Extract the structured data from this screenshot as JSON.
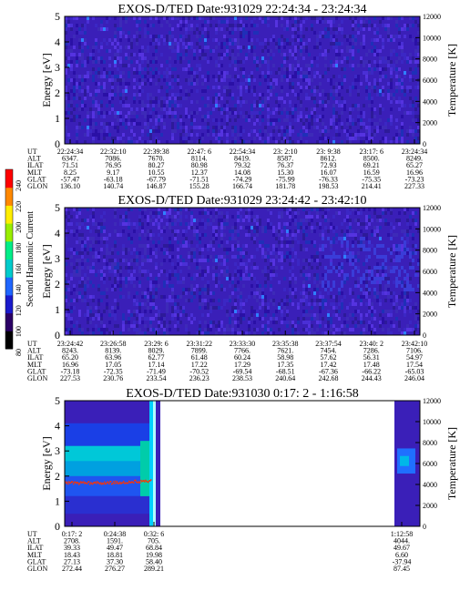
{
  "colorbar": {
    "label": "Second Harmonic Current",
    "ticks": [
      "240",
      "220",
      "200",
      "180",
      "160",
      "140",
      "120",
      "100",
      "80"
    ],
    "colors": [
      "#000000",
      "#2b0066",
      "#1a1acc",
      "#1f66ff",
      "#00cccc",
      "#00ee88",
      "#99ee00",
      "#ffee00",
      "#ff8800",
      "#ff0000"
    ]
  },
  "chart_data": [
    {
      "type": "heatmap",
      "title": "EXOS-D/TED   Date:931029   22:24:34 - 23:24:34",
      "ylabel": "Energy [eV]",
      "y2label": "Temperature [K]",
      "ylim": [
        0,
        5
      ],
      "y2lim": [
        0,
        12000
      ],
      "yticks": [
        "0",
        "1",
        "2",
        "3",
        "4",
        "5"
      ],
      "y2ticks": [
        "0",
        "2000",
        "4000",
        "6000",
        "8000",
        "10000",
        "12000"
      ],
      "ephemeris": [
        {
          "name": "UT",
          "values": [
            "22:24:34",
            "22:32:10",
            "22:39:38",
            "22:47: 6",
            "22:54:34",
            "23: 2:10",
            "23: 9:38",
            "23:17: 6",
            "23:24:34"
          ]
        },
        {
          "name": "ALT",
          "values": [
            "6347.",
            "7086.",
            "7670.",
            "8114.",
            "8419.",
            "8587.",
            "8612.",
            "8500.",
            "8249."
          ]
        },
        {
          "name": "ILAT",
          "values": [
            "71.51",
            "76.95",
            "80.27",
            "80.98",
            "79.32",
            "76.37",
            "72.93",
            "69.21",
            "65.27"
          ]
        },
        {
          "name": "MLT",
          "values": [
            "8.25",
            "9.17",
            "10.55",
            "12.37",
            "14.08",
            "15.30",
            "16.07",
            "16.59",
            "16.96"
          ]
        },
        {
          "name": "GLAT",
          "values": [
            "-57.47",
            "-63.18",
            "-67.79",
            "-71.51",
            "-74.29",
            "-75.99",
            "-76.33",
            "-75.35",
            "-73.23"
          ]
        },
        {
          "name": "GLON",
          "values": [
            "136.10",
            "140.74",
            "146.87",
            "155.28",
            "166.74",
            "181.78",
            "198.53",
            "214.41",
            "227.33"
          ]
        }
      ]
    },
    {
      "type": "heatmap",
      "title": "EXOS-D/TED   Date:931029   23:24:42 - 23:42:10",
      "ylabel": "Energy [eV]",
      "y2label": "Temperature [K]",
      "ylim": [
        0,
        5
      ],
      "y2lim": [
        0,
        12000
      ],
      "yticks": [
        "0",
        "1",
        "2",
        "3",
        "4",
        "5"
      ],
      "y2ticks": [
        "0",
        "2000",
        "4000",
        "6000",
        "8000",
        "10000",
        "12000"
      ],
      "ephemeris": [
        {
          "name": "UT",
          "values": [
            "23:24:42",
            "23:26:58",
            "23:29: 6",
            "23:31:22",
            "23:33:30",
            "23:35:38",
            "23:37:54",
            "23:40: 2",
            "23:42:10"
          ]
        },
        {
          "name": "ALT",
          "values": [
            "8243.",
            "8139.",
            "8029.",
            "7899.",
            "7766.",
            "7621.",
            "7454.",
            "7286.",
            "7106."
          ]
        },
        {
          "name": "ILAT",
          "values": [
            "65.20",
            "63.96",
            "62.77",
            "61.48",
            "60.24",
            "58.98",
            "57.62",
            "56.31",
            "54.97"
          ]
        },
        {
          "name": "MLT",
          "values": [
            "16.96",
            "17.05",
            "17.14",
            "17.22",
            "17.29",
            "17.35",
            "17.42",
            "17.48",
            "17.54"
          ]
        },
        {
          "name": "GLAT",
          "values": [
            "-73.18",
            "-72.35",
            "-71.49",
            "-70.52",
            "-69.54",
            "-68.51",
            "-67.36",
            "-66.22",
            "-65.03"
          ]
        },
        {
          "name": "GLON",
          "values": [
            "227.53",
            "230.76",
            "233.54",
            "236.23",
            "238.53",
            "240.64",
            "242.68",
            "244.43",
            "246.04"
          ]
        }
      ]
    },
    {
      "type": "heatmap",
      "title": "EXOS-D/TED   Date:931030   0:17: 2 - 1:16:58",
      "ylabel": "Energy [eV]",
      "y2label": "Temperature [K]",
      "ylim": [
        0,
        5
      ],
      "y2lim": [
        0,
        12000
      ],
      "yticks": [
        "0",
        "1",
        "2",
        "3",
        "4",
        "5"
      ],
      "y2ticks": [
        "0",
        "2000",
        "4000",
        "6000",
        "8000",
        "10000",
        "12000"
      ],
      "ephemeris": [
        {
          "name": "UT",
          "values": [
            "0:17: 2",
            "0:24:38",
            "0:32: 6",
            "1:12:58"
          ]
        },
        {
          "name": "ALT",
          "values": [
            "2708.",
            "1591.",
            "705.",
            "4044."
          ]
        },
        {
          "name": "ILAT",
          "values": [
            "39.33",
            "49.47",
            "68.84",
            "49.67"
          ]
        },
        {
          "name": "MLT",
          "values": [
            "18.43",
            "18.81",
            "19.98",
            "6.60"
          ]
        },
        {
          "name": "GLAT",
          "values": [
            "27.13",
            "37.30",
            "58.40",
            "-37.94"
          ]
        },
        {
          "name": "GLON",
          "values": [
            "272.44",
            "276.27",
            "289.21",
            "87.45"
          ]
        }
      ]
    }
  ]
}
